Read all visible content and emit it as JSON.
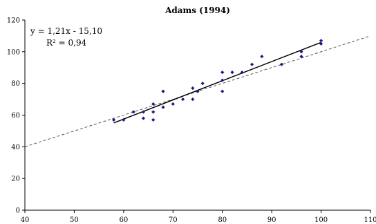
{
  "chart_data": {
    "type": "scatter",
    "title": "Adams (1994)",
    "xlabel": "",
    "ylabel": "",
    "xlim": [
      40,
      110
    ],
    "ylim": [
      0,
      120
    ],
    "x_ticks": [
      "40",
      "50",
      "60",
      "70",
      "80",
      "90",
      "100",
      "110"
    ],
    "y_ticks": [
      "0",
      "20",
      "40",
      "60",
      "80",
      "100",
      "120"
    ],
    "x_tick_values": [
      40,
      50,
      60,
      70,
      80,
      90,
      100,
      110
    ],
    "y_tick_values": [
      0,
      20,
      40,
      60,
      80,
      100,
      120
    ],
    "grid": false,
    "marker_color": "#1a1a8c",
    "trendline": {
      "slope": 1.21,
      "intercept": -15.1,
      "x_range": [
        58,
        100
      ],
      "color": "#000000"
    },
    "identity_line": {
      "x_range": [
        40,
        110
      ],
      "style": "dashed",
      "color": "#555555"
    },
    "equation_line1": "y = 1,21x - 15,10",
    "equation_line2": "R² = 0,94",
    "points": [
      [
        58,
        57
      ],
      [
        60,
        57
      ],
      [
        62,
        62
      ],
      [
        64,
        62
      ],
      [
        64,
        58
      ],
      [
        66,
        57
      ],
      [
        66,
        62
      ],
      [
        66,
        67
      ],
      [
        68,
        65
      ],
      [
        68,
        75
      ],
      [
        70,
        67
      ],
      [
        72,
        70
      ],
      [
        74,
        70
      ],
      [
        74,
        77
      ],
      [
        75,
        75
      ],
      [
        76,
        80
      ],
      [
        80,
        75
      ],
      [
        80,
        82
      ],
      [
        80,
        87
      ],
      [
        82,
        87
      ],
      [
        84,
        87
      ],
      [
        86,
        92
      ],
      [
        88,
        97
      ],
      [
        92,
        92
      ],
      [
        96,
        97
      ],
      [
        96,
        100
      ],
      [
        100,
        105
      ],
      [
        100,
        107
      ]
    ]
  }
}
